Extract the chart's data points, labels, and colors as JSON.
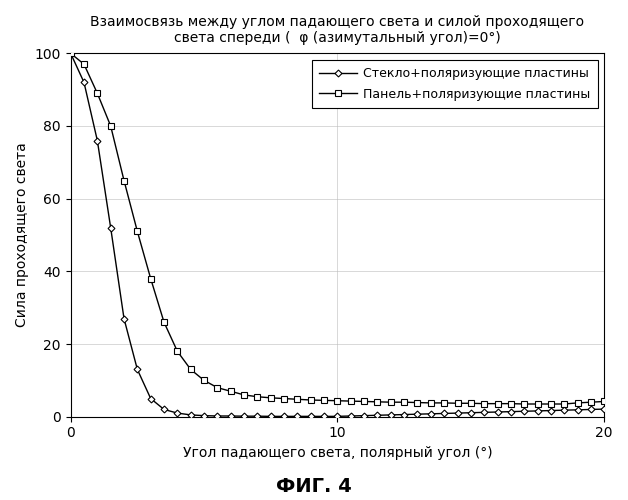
{
  "title_line1": "Взаимосвязь между углом падающего света и силой проходящего",
  "title_line2": "света спереди (  φ (азимутальный угол)=0°)",
  "xlabel": "Угол падающего света, полярный угол (°)",
  "ylabel": "Сила проходящего света",
  "fig_label": "ФИГ. 4",
  "legend1": "Стекло+поляризующие пластины",
  "legend2": "Панель+поляризующие пластины",
  "xlim": [
    0,
    20
  ],
  "ylim": [
    0,
    100
  ],
  "xticks": [
    0,
    10,
    20
  ],
  "yticks": [
    0,
    20,
    40,
    60,
    80,
    100
  ],
  "background_color": "#ffffff",
  "line_color": "#000000",
  "series1_x": [
    0,
    0.5,
    1.0,
    1.5,
    2.0,
    2.5,
    3.0,
    3.5,
    4.0,
    4.5,
    5.0,
    5.5,
    6.0,
    6.5,
    7.0,
    7.5,
    8.0,
    8.5,
    9.0,
    9.5,
    10.0,
    10.5,
    11.0,
    11.5,
    12.0,
    12.5,
    13.0,
    13.5,
    14.0,
    14.5,
    15.0,
    15.5,
    16.0,
    16.5,
    17.0,
    17.5,
    18.0,
    18.5,
    19.0,
    19.5,
    20.0
  ],
  "series1_y": [
    100,
    92,
    76,
    52,
    27,
    13,
    5,
    2,
    1,
    0.5,
    0.3,
    0.2,
    0.2,
    0.15,
    0.15,
    0.1,
    0.1,
    0.1,
    0.1,
    0.1,
    0.1,
    0.2,
    0.3,
    0.4,
    0.5,
    0.6,
    0.7,
    0.8,
    0.9,
    1.0,
    1.1,
    1.2,
    1.3,
    1.4,
    1.5,
    1.6,
    1.7,
    1.8,
    1.9,
    2.0,
    2.1
  ],
  "series2_x": [
    0,
    0.5,
    1.0,
    1.5,
    2.0,
    2.5,
    3.0,
    3.5,
    4.0,
    4.5,
    5.0,
    5.5,
    6.0,
    6.5,
    7.0,
    7.5,
    8.0,
    8.5,
    9.0,
    9.5,
    10.0,
    10.5,
    11.0,
    11.5,
    12.0,
    12.5,
    13.0,
    13.5,
    14.0,
    14.5,
    15.0,
    15.5,
    16.0,
    16.5,
    17.0,
    17.5,
    18.0,
    18.5,
    19.0,
    19.5,
    20.0
  ],
  "series2_y": [
    100,
    97,
    89,
    80,
    65,
    51,
    38,
    26,
    18,
    13,
    10,
    8,
    7,
    6,
    5.5,
    5.2,
    5.0,
    4.8,
    4.6,
    4.5,
    4.4,
    4.3,
    4.2,
    4.1,
    4.0,
    4.0,
    3.9,
    3.8,
    3.8,
    3.7,
    3.7,
    3.6,
    3.6,
    3.6,
    3.5,
    3.5,
    3.5,
    3.5,
    3.8,
    4.0,
    4.2
  ]
}
